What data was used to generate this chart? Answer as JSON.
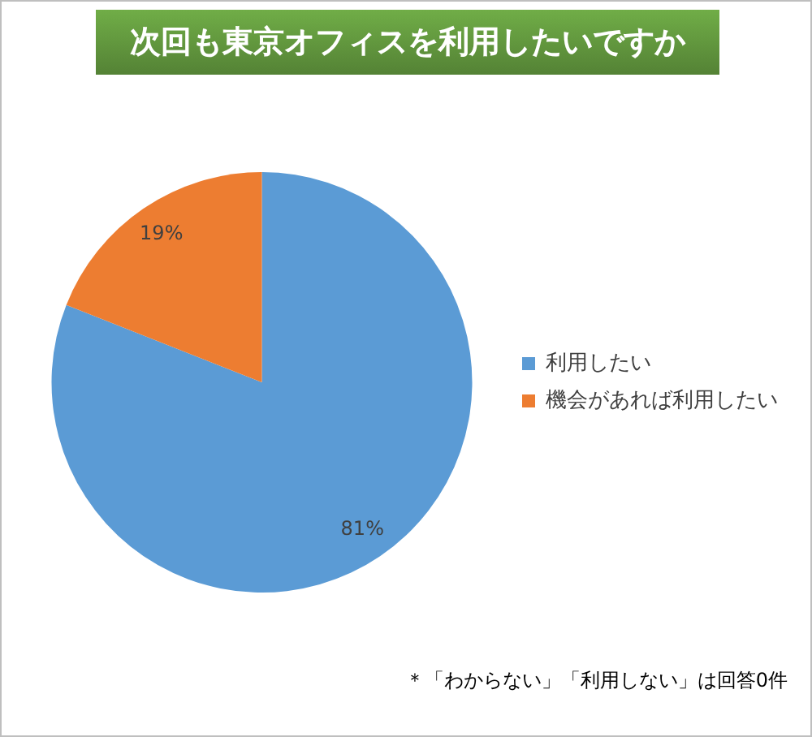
{
  "chart_data": {
    "type": "pie",
    "title": "次回も東京オフィスを利用したいですか",
    "categories": [
      "利用したい",
      "機会があれば利用したい"
    ],
    "values": [
      81,
      19
    ],
    "colors": [
      "#5b9bd5",
      "#ed7d31"
    ],
    "value_labels": [
      "81%",
      "19%"
    ],
    "legend": "right",
    "annotations": [
      "＊「わからない」「利用しない」は回答0件"
    ]
  }
}
